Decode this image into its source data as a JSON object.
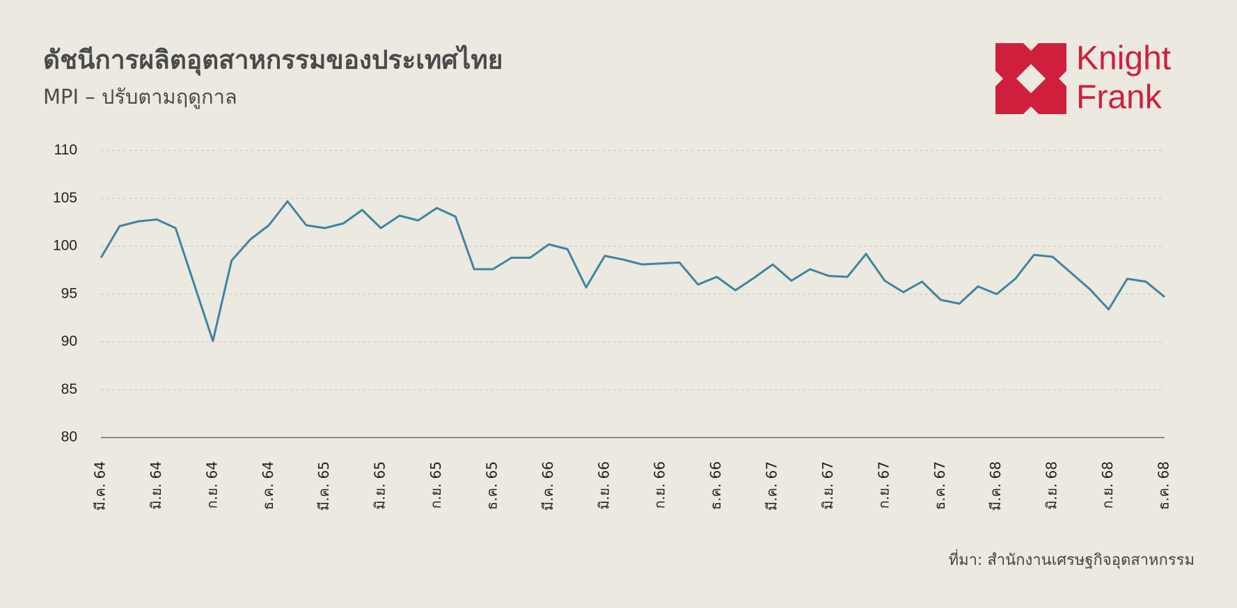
{
  "chart_data": {
    "type": "line",
    "title": "ดัชนีการผลิตอุตสาหกรรมของประเทศไทย",
    "subtitle": "MPI – ปรับตามฤดูกาล",
    "logo_text": [
      "Knight",
      "Frank"
    ],
    "source": "ที่มา: สำนักงานเศรษฐกิจอุตสาหกรรม",
    "categories": [
      "มี.ค. 64",
      null,
      null,
      "มิ.ย. 64",
      null,
      null,
      "ก.ย. 64",
      null,
      null,
      "ธ.ค. 64",
      null,
      null,
      "มี.ค. 65",
      null,
      null,
      "มิ.ย. 65",
      null,
      null,
      "ก.ย. 65",
      null,
      null,
      "ธ.ค. 65",
      null,
      null,
      "มี.ค. 66",
      null,
      null,
      "มิ.ย. 66",
      null,
      null,
      "ก.ย. 66",
      null,
      null,
      "ธ.ค. 66",
      null,
      null,
      "มี.ค. 67",
      null,
      null,
      "มิ.ย. 67",
      null,
      null,
      "ก.ย. 67",
      null,
      null,
      "ธ.ค. 67",
      null,
      null,
      "มี.ค. 68",
      null,
      null,
      "มิ.ย. 68",
      null,
      null,
      "ก.ย. 68",
      null,
      null,
      "ธ.ค. 68"
    ],
    "series": [
      {
        "name": "MPI",
        "color": "#3f84a0",
        "values": [
          98.8,
          102.1,
          102.6,
          102.8,
          101.9,
          96.0,
          90.1,
          98.5,
          100.7,
          102.2,
          104.7,
          102.2,
          101.9,
          102.4,
          103.8,
          101.9,
          103.2,
          102.7,
          104.0,
          103.1,
          97.6,
          97.6,
          98.8,
          98.8,
          100.2,
          99.7,
          95.7,
          99.0,
          98.6,
          98.1,
          98.2,
          98.3,
          96.0,
          96.8,
          95.4,
          96.7,
          98.1,
          96.4,
          97.6,
          96.9,
          96.8,
          99.2,
          96.4,
          95.2,
          96.3,
          94.4,
          94.0,
          95.8,
          95.0,
          96.6,
          99.1,
          98.9,
          97.2,
          95.5,
          93.4,
          96.6,
          96.3,
          94.7
        ]
      }
    ],
    "ylim": [
      80,
      110
    ],
    "yticks": [
      80,
      85,
      90,
      95,
      100,
      105,
      110
    ],
    "grid": true
  }
}
